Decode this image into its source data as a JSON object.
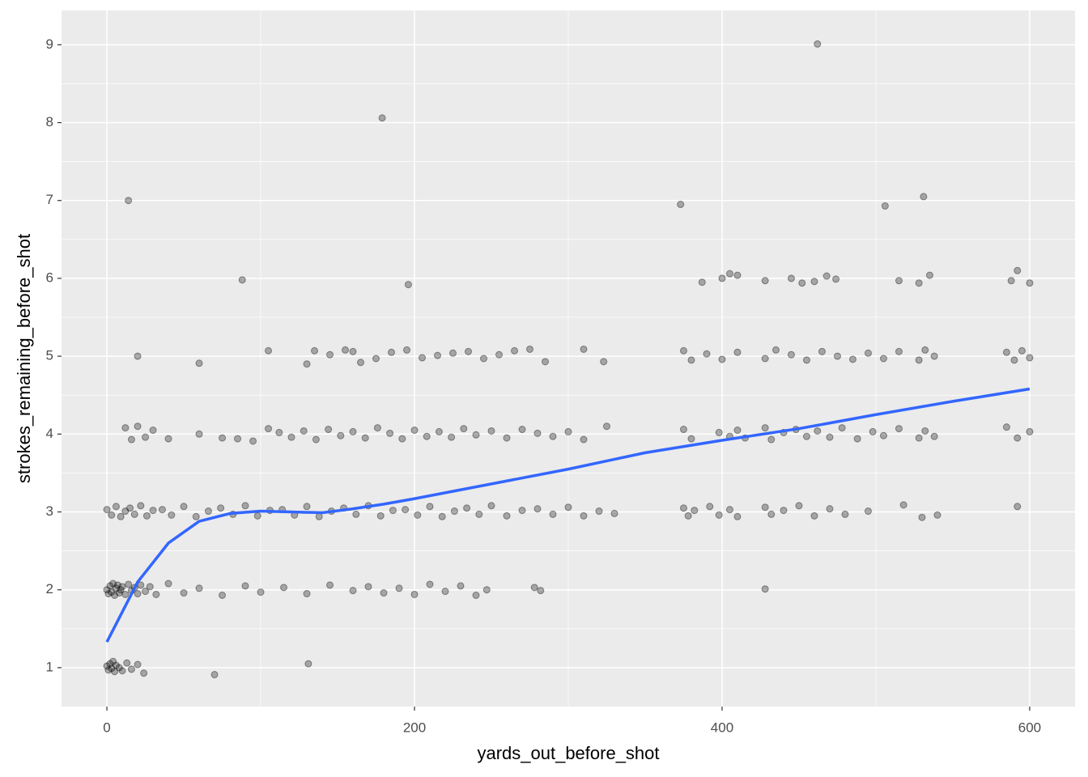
{
  "chart_data": {
    "type": "scatter",
    "x_label": "yards_out_before_shot",
    "y_label": "strokes_remaining_before_shot",
    "xlim": [
      -29.5,
      629.5
    ],
    "ylim": [
      0.5,
      9.44
    ],
    "xticks": [
      0,
      200,
      400,
      600
    ],
    "yticks": [
      1,
      2,
      3,
      4,
      5,
      6,
      7,
      8,
      9
    ],
    "x_minor_grid": [
      100,
      300,
      500
    ],
    "y_minor_grid": [
      1.5,
      2.5,
      3.5,
      4.5,
      5.5,
      6.5,
      7.5,
      8.5
    ],
    "grid": true,
    "panel_color": "#ebebeb",
    "point_alpha": 0.3,
    "series": [
      {
        "color": "#000000",
        "x": [
          0,
          1,
          2,
          3,
          4,
          5,
          6,
          8,
          10,
          13,
          16,
          20,
          24,
          70,
          131,
          0,
          1,
          2,
          3,
          4,
          5,
          6,
          7,
          8,
          9,
          10,
          12,
          14,
          16,
          18,
          20,
          22,
          25,
          28,
          32,
          40,
          50,
          60,
          75,
          90,
          100,
          115,
          130,
          145,
          160,
          170,
          180,
          190,
          200,
          210,
          220,
          230,
          240,
          247,
          278,
          282,
          428,
          0,
          3,
          6,
          9,
          12,
          15,
          18,
          22,
          26,
          30,
          36,
          42,
          50,
          58,
          66,
          74,
          82,
          90,
          98,
          106,
          114,
          122,
          130,
          138,
          146,
          154,
          162,
          170,
          178,
          186,
          194,
          202,
          210,
          218,
          226,
          234,
          242,
          250,
          260,
          270,
          280,
          290,
          300,
          310,
          320,
          330,
          375,
          378,
          382,
          392,
          398,
          405,
          410,
          428,
          432,
          440,
          450,
          460,
          470,
          480,
          495,
          518,
          530,
          540,
          592,
          12,
          16,
          20,
          25,
          30,
          40,
          60,
          75,
          85,
          95,
          105,
          112,
          120,
          128,
          136,
          144,
          152,
          160,
          168,
          176,
          184,
          192,
          200,
          208,
          216,
          224,
          232,
          240,
          250,
          260,
          270,
          280,
          290,
          300,
          310,
          325,
          375,
          380,
          398,
          405,
          410,
          415,
          428,
          432,
          440,
          448,
          455,
          462,
          470,
          478,
          488,
          498,
          505,
          515,
          528,
          532,
          538,
          585,
          592,
          600,
          20,
          60,
          105,
          130,
          135,
          145,
          155,
          160,
          165,
          175,
          185,
          195,
          205,
          215,
          225,
          235,
          245,
          255,
          265,
          275,
          285,
          310,
          323,
          375,
          380,
          390,
          400,
          410,
          428,
          435,
          445,
          455,
          465,
          475,
          485,
          495,
          505,
          515,
          528,
          532,
          538,
          585,
          590,
          595,
          600,
          88,
          196,
          387,
          400,
          405,
          410,
          428,
          445,
          452,
          460,
          468,
          474,
          515,
          528,
          535,
          588,
          592,
          600,
          14,
          373,
          506,
          531,
          179,
          462
        ],
        "values": [
          1.02,
          0.97,
          1.05,
          0.99,
          1.08,
          0.95,
          1.03,
          1.0,
          0.96,
          1.06,
          0.98,
          1.04,
          0.93,
          0.91,
          1.05,
          2.0,
          1.95,
          2.05,
          1.97,
          2.08,
          1.93,
          2.02,
          2.06,
          1.96,
          2.0,
          2.04,
          1.94,
          2.07,
          1.99,
          2.03,
          1.95,
          2.06,
          1.98,
          2.04,
          1.94,
          2.08,
          1.96,
          2.02,
          1.93,
          2.05,
          1.97,
          2.03,
          1.95,
          2.06,
          1.99,
          2.04,
          1.96,
          2.02,
          1.94,
          2.07,
          1.98,
          2.05,
          1.93,
          2.0,
          2.03,
          1.99,
          2.01,
          3.03,
          2.96,
          3.07,
          2.94,
          3.01,
          3.05,
          2.97,
          3.08,
          2.95,
          3.02,
          3.03,
          2.96,
          3.07,
          2.94,
          3.01,
          3.05,
          2.97,
          3.08,
          2.95,
          3.02,
          3.03,
          2.96,
          3.07,
          2.94,
          3.01,
          3.05,
          2.97,
          3.08,
          2.95,
          3.02,
          3.03,
          2.96,
          3.07,
          2.94,
          3.01,
          3.05,
          2.97,
          3.08,
          2.95,
          3.02,
          3.04,
          2.97,
          3.06,
          2.95,
          3.01,
          2.98,
          3.05,
          2.95,
          3.02,
          3.07,
          2.96,
          3.03,
          2.94,
          3.06,
          2.97,
          3.02,
          3.08,
          2.95,
          3.04,
          2.97,
          3.01,
          3.09,
          2.93,
          2.96,
          3.07,
          4.08,
          3.93,
          4.1,
          3.96,
          4.05,
          3.94,
          4.0,
          3.95,
          3.94,
          3.91,
          4.07,
          4.02,
          3.96,
          4.04,
          3.93,
          4.06,
          3.98,
          4.03,
          3.95,
          4.08,
          4.01,
          3.94,
          4.05,
          3.97,
          4.03,
          3.96,
          4.07,
          3.99,
          4.04,
          3.95,
          4.06,
          4.01,
          3.97,
          4.03,
          3.93,
          4.1,
          4.06,
          3.94,
          4.02,
          3.97,
          4.05,
          3.95,
          4.08,
          3.93,
          4.02,
          4.06,
          3.97,
          4.04,
          3.96,
          4.08,
          3.94,
          4.03,
          3.98,
          4.07,
          3.95,
          4.04,
          3.97,
          4.09,
          3.95,
          4.03,
          5.0,
          4.91,
          5.07,
          4.9,
          5.07,
          5.02,
          5.08,
          5.06,
          4.92,
          4.97,
          5.05,
          5.08,
          4.98,
          5.01,
          5.04,
          5.06,
          4.97,
          5.02,
          5.07,
          5.09,
          4.93,
          5.09,
          4.93,
          5.07,
          4.95,
          5.03,
          4.96,
          5.05,
          4.97,
          5.08,
          5.02,
          4.95,
          5.06,
          5.0,
          4.96,
          5.04,
          4.97,
          5.06,
          4.95,
          5.08,
          5.0,
          5.05,
          4.95,
          5.07,
          4.98,
          5.98,
          5.92,
          5.95,
          6.0,
          6.06,
          6.04,
          5.97,
          6.0,
          5.94,
          5.96,
          6.03,
          5.99,
          5.97,
          5.94,
          6.04,
          5.97,
          6.1,
          5.94,
          7.0,
          6.95,
          6.93,
          7.05,
          8.06,
          9.01
        ]
      }
    ],
    "smooth": {
      "color": "#3366ff",
      "x": [
        0,
        20,
        40,
        60,
        80,
        100,
        120,
        140,
        160,
        180,
        200,
        250,
        300,
        350,
        400,
        450,
        500,
        550,
        600
      ],
      "values": [
        1.33,
        2.1,
        2.6,
        2.88,
        2.98,
        3.01,
        3.0,
        2.99,
        3.04,
        3.1,
        3.17,
        3.36,
        3.55,
        3.76,
        3.92,
        4.07,
        4.25,
        4.42,
        4.58
      ]
    }
  }
}
